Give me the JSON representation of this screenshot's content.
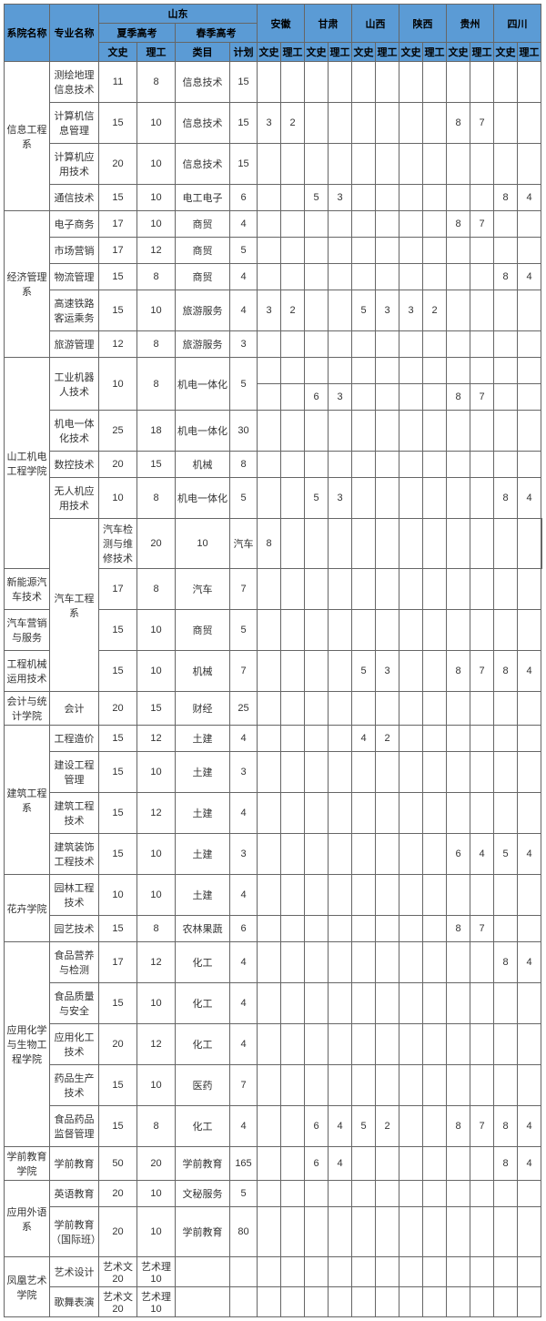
{
  "header": {
    "dept": "系院名称",
    "major": "专业名称",
    "shandong": "山东",
    "summer": "夏季高考",
    "spring": "春季高考",
    "wenshi": "文史",
    "ligong": "理工",
    "leimu": "类目",
    "jihua": "计划",
    "anhui": "安徽",
    "gansu": "甘肃",
    "shanxi": "山西",
    "shaanxi": "陕西",
    "guizhou": "贵州",
    "sichuan": "四川"
  },
  "rows": [
    {
      "dept": "信息工程系",
      "span": 4,
      "major": "测绘地理信息技术",
      "ws": "11",
      "lg": "8",
      "lm": "信息技术",
      "jh": "15",
      "p": [
        "",
        "",
        "",
        "",
        "",
        "",
        "",
        "",
        "",
        "",
        "",
        ""
      ]
    },
    {
      "major": "计算机信息管理",
      "ws": "15",
      "lg": "10",
      "lm": "信息技术",
      "jh": "15",
      "p": [
        "3",
        "2",
        "",
        "",
        "",
        "",
        "",
        "",
        "8",
        "7",
        "",
        ""
      ]
    },
    {
      "major": "计算机应用技术",
      "ws": "20",
      "lg": "10",
      "lm": "信息技术",
      "jh": "15",
      "p": [
        "",
        "",
        "",
        "",
        "",
        "",
        "",
        "",
        "",
        "",
        "",
        ""
      ]
    },
    {
      "major": "通信技术",
      "ws": "15",
      "lg": "10",
      "lm": "电工电子",
      "jh": "6",
      "p": [
        "",
        "",
        "5",
        "3",
        "",
        "",
        "",
        "",
        "",
        "",
        "8",
        "4"
      ]
    },
    {
      "dept": "经济管理系",
      "span": 5,
      "major": "电子商务",
      "ws": "17",
      "lg": "10",
      "lm": "商贸",
      "jh": "4",
      "p": [
        "",
        "",
        "",
        "",
        "",
        "",
        "",
        "",
        "8",
        "7",
        "",
        ""
      ]
    },
    {
      "major": "市场营销",
      "ws": "17",
      "lg": "12",
      "lm": "商贸",
      "jh": "5",
      "p": [
        "",
        "",
        "",
        "",
        "",
        "",
        "",
        "",
        "",
        "",
        "",
        ""
      ]
    },
    {
      "major": "物流管理",
      "ws": "15",
      "lg": "8",
      "lm": "商贸",
      "jh": "4",
      "p": [
        "",
        "",
        "",
        "",
        "",
        "",
        "",
        "",
        "",
        "",
        "8",
        "4"
      ]
    },
    {
      "major": "高速铁路客运乘务",
      "ws": "15",
      "lg": "10",
      "lm": "旅游服务",
      "jh": "4",
      "p": [
        "3",
        "2",
        "",
        "",
        "5",
        "3",
        "3",
        "2",
        "",
        "",
        "",
        ""
      ]
    },
    {
      "major": "旅游管理",
      "ws": "12",
      "lg": "8",
      "lm": "旅游服务",
      "jh": "3",
      "p": [
        "",
        "",
        "",
        "",
        "",
        "",
        "",
        "",
        "",
        "",
        "",
        ""
      ]
    },
    {
      "dept": "山工机电工程学院",
      "span": 5,
      "major": "工业机器人技术",
      "ws": "10",
      "lg": "8",
      "lm": "机电一体化",
      "jh": "5",
      "p": [
        "",
        "",
        "",
        "",
        "",
        "",
        "",
        "",
        "",
        "",
        "",
        ""
      ],
      "split": true,
      "p2": [
        "",
        "",
        "6",
        "3",
        "",
        "",
        "",
        "",
        "8",
        "7",
        "",
        ""
      ]
    },
    {
      "major": "机电一体化技术",
      "ws": "25",
      "lg": "18",
      "lm": "机电一体化",
      "jh": "30",
      "p": [
        "",
        "",
        "",
        "",
        "",
        "",
        "",
        "",
        "",
        "",
        "",
        ""
      ]
    },
    {
      "major": "数控技术",
      "ws": "20",
      "lg": "15",
      "lm": "机械",
      "jh": "8",
      "p": [
        "",
        "",
        "",
        "",
        "",
        "",
        "",
        "",
        "",
        "",
        "",
        ""
      ]
    },
    {
      "major": "无人机应用技术",
      "ws": "10",
      "lg": "8",
      "lm": "机电一体化",
      "jh": "5",
      "p": [
        "",
        "",
        "5",
        "3",
        "",
        "",
        "",
        "",
        "",
        "",
        "8",
        "4"
      ]
    },
    {
      "dept": "汽车工程系",
      "span": 4,
      "major": "汽车检测与维修技术",
      "ws": "20",
      "lg": "10",
      "lm": "汽车",
      "jh": "8",
      "p": [
        "",
        "",
        "",
        "",
        "",
        "",
        "",
        "",
        "",
        "",
        "",
        ""
      ]
    },
    {
      "major": "新能源汽车技术",
      "ws": "17",
      "lg": "8",
      "lm": "汽车",
      "jh": "7",
      "p": [
        "",
        "",
        "",
        "",
        "",
        "",
        "",
        "",
        "",
        "",
        "",
        ""
      ]
    },
    {
      "major": "汽车营销与服务",
      "ws": "15",
      "lg": "10",
      "lm": "商贸",
      "jh": "5",
      "p": [
        "",
        "",
        "",
        "",
        "",
        "",
        "",
        "",
        "",
        "",
        "",
        ""
      ]
    },
    {
      "major": "工程机械运用技术",
      "ws": "15",
      "lg": "10",
      "lm": "机械",
      "jh": "7",
      "p": [
        "",
        "",
        "",
        "",
        "5",
        "3",
        "",
        "",
        "8",
        "7",
        "8",
        "4"
      ]
    },
    {
      "dept": "会计与统计学院",
      "span": 1,
      "major": "会计",
      "ws": "20",
      "lg": "15",
      "lm": "财经",
      "jh": "25",
      "p": [
        "",
        "",
        "",
        "",
        "",
        "",
        "",
        "",
        "",
        "",
        "",
        ""
      ]
    },
    {
      "dept": "建筑工程系",
      "span": 4,
      "major": "工程造价",
      "ws": "15",
      "lg": "12",
      "lm": "土建",
      "jh": "4",
      "p": [
        "",
        "",
        "",
        "",
        "4",
        "2",
        "",
        "",
        "",
        "",
        "",
        ""
      ]
    },
    {
      "major": "建设工程管理",
      "ws": "15",
      "lg": "10",
      "lm": "土建",
      "jh": "3",
      "p": [
        "",
        "",
        "",
        "",
        "",
        "",
        "",
        "",
        "",
        "",
        "",
        ""
      ]
    },
    {
      "major": "建筑工程技术",
      "ws": "15",
      "lg": "12",
      "lm": "土建",
      "jh": "4",
      "p": [
        "",
        "",
        "",
        "",
        "",
        "",
        "",
        "",
        "",
        "",
        "",
        ""
      ]
    },
    {
      "major": "建筑装饰工程技术",
      "ws": "15",
      "lg": "10",
      "lm": "土建",
      "jh": "3",
      "p": [
        "",
        "",
        "",
        "",
        "",
        "",
        "",
        "",
        "6",
        "4",
        "5",
        "4"
      ]
    },
    {
      "dept": "花卉学院",
      "span": 2,
      "major": "园林工程技术",
      "ws": "10",
      "lg": "10",
      "lm": "土建",
      "jh": "4",
      "p": [
        "",
        "",
        "",
        "",
        "",
        "",
        "",
        "",
        "",
        "",
        "",
        ""
      ]
    },
    {
      "major": "园艺技术",
      "ws": "15",
      "lg": "8",
      "lm": "农林果蔬",
      "jh": "6",
      "p": [
        "",
        "",
        "",
        "",
        "",
        "",
        "",
        "",
        "8",
        "7",
        "",
        ""
      ]
    },
    {
      "dept": "应用化学与生物工程学院",
      "span": 5,
      "major": "食品营养与检测",
      "ws": "17",
      "lg": "12",
      "lm": "化工",
      "jh": "4",
      "p": [
        "",
        "",
        "",
        "",
        "",
        "",
        "",
        "",
        "",
        "",
        "8",
        "4"
      ]
    },
    {
      "major": "食品质量与安全",
      "ws": "15",
      "lg": "10",
      "lm": "化工",
      "jh": "4",
      "p": [
        "",
        "",
        "",
        "",
        "",
        "",
        "",
        "",
        "",
        "",
        "",
        ""
      ]
    },
    {
      "major": "应用化工技术",
      "ws": "20",
      "lg": "12",
      "lm": "化工",
      "jh": "4",
      "p": [
        "",
        "",
        "",
        "",
        "",
        "",
        "",
        "",
        "",
        "",
        "",
        ""
      ]
    },
    {
      "major": "药品生产技术",
      "ws": "15",
      "lg": "10",
      "lm": "医药",
      "jh": "7",
      "p": [
        "",
        "",
        "",
        "",
        "",
        "",
        "",
        "",
        "",
        "",
        "",
        ""
      ]
    },
    {
      "major": "食品药品监督管理",
      "ws": "15",
      "lg": "8",
      "lm": "化工",
      "jh": "4",
      "p": [
        "",
        "",
        "6",
        "4",
        "5",
        "2",
        "",
        "",
        "8",
        "7",
        "8",
        "4"
      ]
    },
    {
      "dept": "学前教育学院",
      "span": 1,
      "major": "学前教育",
      "ws": "50",
      "lg": "20",
      "lm": "学前教育",
      "jh": "165",
      "p": [
        "",
        "",
        "6",
        "4",
        "",
        "",
        "",
        "",
        "",
        "",
        "8",
        "4"
      ]
    },
    {
      "dept": "应用外语系",
      "span": 2,
      "major": "英语教育",
      "ws": "20",
      "lg": "10",
      "lm": "文秘服务",
      "jh": "5",
      "p": [
        "",
        "",
        "",
        "",
        "",
        "",
        "",
        "",
        "",
        "",
        "",
        ""
      ]
    },
    {
      "major": "学前教育（国际班）",
      "ws": "20",
      "lg": "10",
      "lm": "学前教育",
      "jh": "80",
      "p": [
        "",
        "",
        "",
        "",
        "",
        "",
        "",
        "",
        "",
        "",
        "",
        ""
      ]
    },
    {
      "dept": "凤凰艺术学院",
      "span": 2,
      "major": "艺术设计",
      "ws": "艺术文20",
      "lg": "艺术理10",
      "lm": "",
      "jh": "",
      "p": [
        "",
        "",
        "",
        "",
        "",
        "",
        "",
        "",
        "",
        "",
        "",
        ""
      ]
    },
    {
      "major": "歌舞表演",
      "ws": "艺术文20",
      "lg": "艺术理10",
      "lm": "",
      "jh": "",
      "p": [
        "",
        "",
        "",
        "",
        "",
        "",
        "",
        "",
        "",
        "",
        "",
        ""
      ]
    }
  ],
  "colWidths": {
    "dept": 50,
    "major": 54,
    "ws": 42,
    "lg": 42,
    "lm": 60,
    "jh": 30,
    "prov": 26
  }
}
